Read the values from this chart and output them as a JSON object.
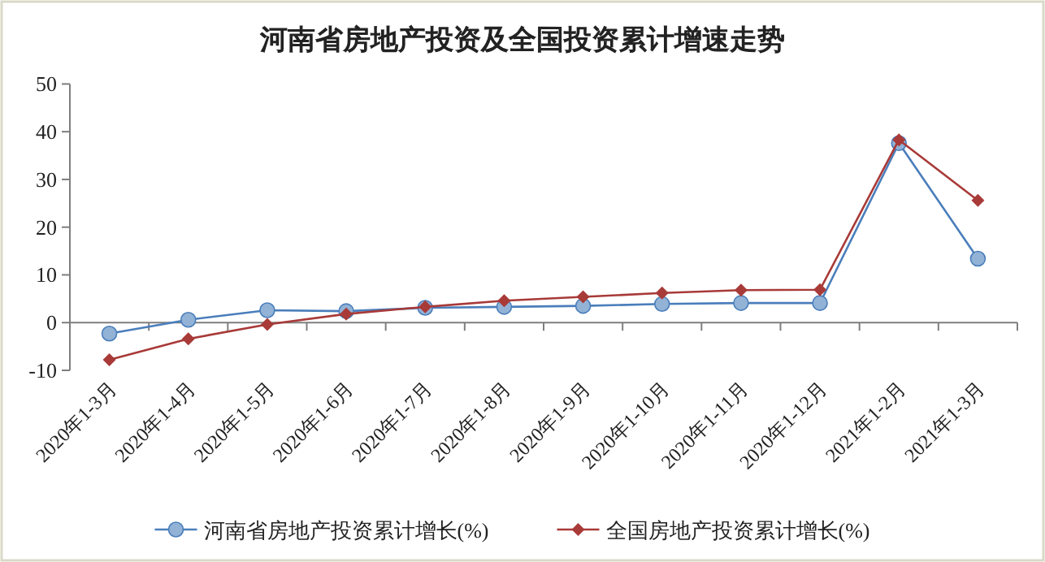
{
  "chart_data": {
    "type": "line",
    "title": "河南省房地产投资及全国投资累计增速走势",
    "categories": [
      "2020年1-3月",
      "2020年1-4月",
      "2020年1-5月",
      "2020年1-6月",
      "2020年1-7月",
      "2020年1-8月",
      "2020年1-9月",
      "2020年1-10月",
      "2020年1-11月",
      "2020年1-12月",
      "2021年1-2月",
      "2021年1-3月"
    ],
    "series": [
      {
        "name": "河南省房地产投资累计增长(%)",
        "color": "#4a7ebb",
        "marker": "circle",
        "values": [
          -2.3,
          0.6,
          2.6,
          2.4,
          3.1,
          3.3,
          3.5,
          3.9,
          4.1,
          4.1,
          37.6,
          13.4
        ]
      },
      {
        "name": "全国房地产投资累计增长(%)",
        "color": "#a83a38",
        "marker": "diamond",
        "values": [
          -7.8,
          -3.4,
          -0.4,
          1.8,
          3.3,
          4.6,
          5.4,
          6.2,
          6.8,
          6.9,
          38.3,
          25.6
        ]
      }
    ],
    "ylim": [
      -10,
      50
    ],
    "yticks": [
      -10,
      0,
      10,
      20,
      30,
      40,
      50
    ],
    "legend": "bottom"
  }
}
